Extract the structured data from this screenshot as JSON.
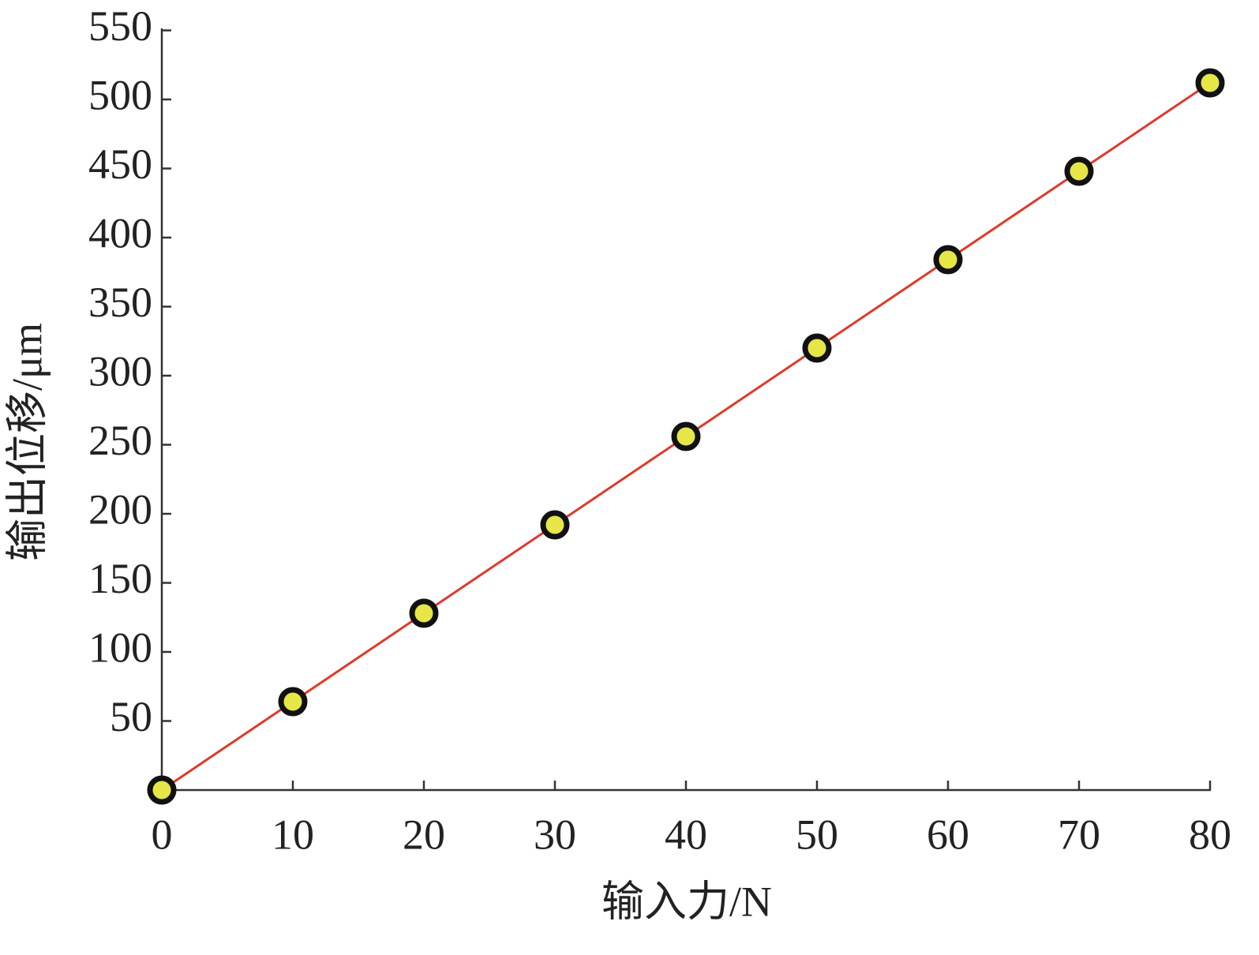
{
  "chart_data": {
    "type": "line",
    "xlabel": "输入力/N",
    "ylabel": "输出位移/μm",
    "x": [
      0,
      10,
      20,
      30,
      40,
      50,
      60,
      70,
      80
    ],
    "values": [
      0,
      64,
      128,
      192,
      256,
      320,
      384,
      448,
      512
    ],
    "color": "#e0392b",
    "marker_color": "#e6e647",
    "xlim": [
      0,
      80
    ],
    "ylim": [
      0,
      550
    ],
    "xticks": [
      0,
      10,
      20,
      30,
      40,
      50,
      60,
      70,
      80
    ],
    "yticks": [
      50,
      100,
      150,
      200,
      250,
      300,
      350,
      400,
      450,
      500,
      550
    ],
    "grid": false
  }
}
